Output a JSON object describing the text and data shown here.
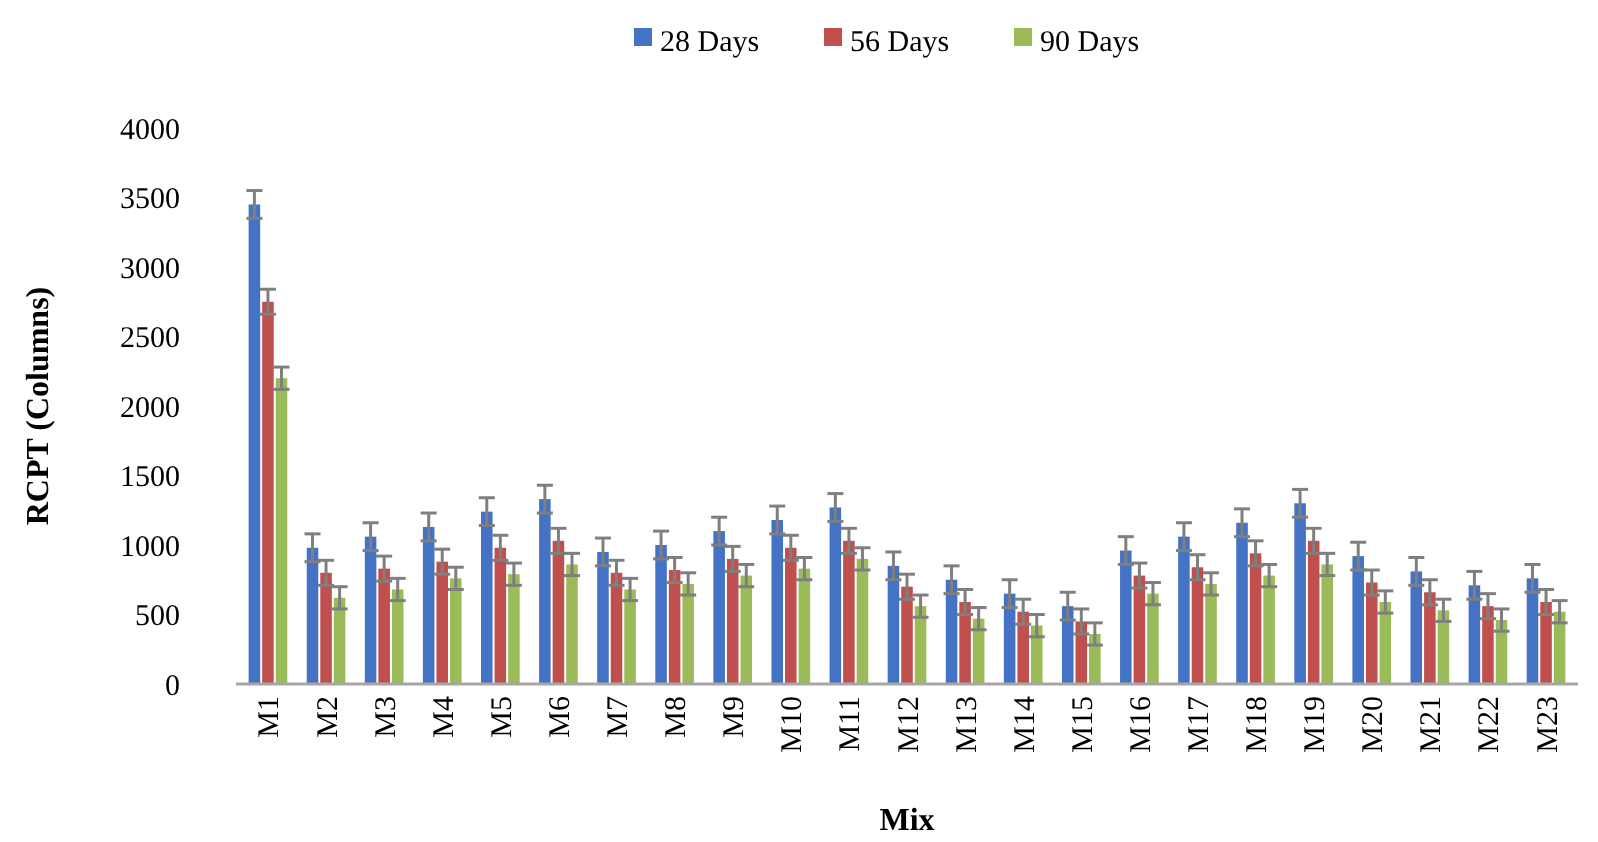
{
  "chart_data": {
    "type": "bar",
    "xlabel": "Mix",
    "ylabel": "RCPT (Columns)",
    "categories": [
      "M1",
      "M2",
      "M3",
      "M4",
      "M5",
      "M6",
      "M7",
      "M8",
      "M9",
      "M10",
      "M11",
      "M12",
      "M13",
      "M14",
      "M15",
      "M16",
      "M17",
      "M18",
      "M19",
      "M20",
      "M21",
      "M22",
      "M23"
    ],
    "series": [
      {
        "name": "28 Days",
        "color": "#4472c4",
        "values": [
          3450,
          980,
          1060,
          1130,
          1240,
          1330,
          950,
          1000,
          1100,
          1180,
          1270,
          850,
          750,
          650,
          560,
          960,
          1060,
          1160,
          1300,
          920,
          810,
          710,
          760
        ],
        "errors": [
          100,
          100,
          100,
          100,
          100,
          100,
          100,
          100,
          100,
          100,
          100,
          100,
          100,
          100,
          100,
          100,
          100,
          100,
          100,
          100,
          100,
          100,
          100
        ]
      },
      {
        "name": "56 Days",
        "color": "#c0504d",
        "values": [
          2750,
          800,
          830,
          880,
          980,
          1030,
          800,
          820,
          900,
          980,
          1030,
          700,
          590,
          520,
          450,
          780,
          840,
          940,
          1030,
          730,
          660,
          560,
          590
        ],
        "errors": [
          90,
          90,
          90,
          90,
          90,
          90,
          90,
          90,
          90,
          90,
          90,
          90,
          90,
          90,
          90,
          90,
          90,
          90,
          90,
          90,
          90,
          90,
          90
        ]
      },
      {
        "name": "90 Days",
        "color": "#9bbb59",
        "values": [
          2200,
          620,
          680,
          760,
          790,
          860,
          680,
          720,
          780,
          830,
          900,
          560,
          470,
          420,
          360,
          650,
          720,
          780,
          860,
          590,
          530,
          460,
          520
        ],
        "errors": [
          80,
          80,
          80,
          80,
          80,
          80,
          80,
          80,
          80,
          80,
          80,
          80,
          80,
          80,
          80,
          80,
          80,
          80,
          80,
          80,
          80,
          80,
          80
        ]
      }
    ],
    "ylim": [
      0,
      4000
    ],
    "yticks": [
      0,
      500,
      1000,
      1500,
      2000,
      2500,
      3000,
      3500,
      4000
    ],
    "grid": false,
    "legend": "top"
  }
}
